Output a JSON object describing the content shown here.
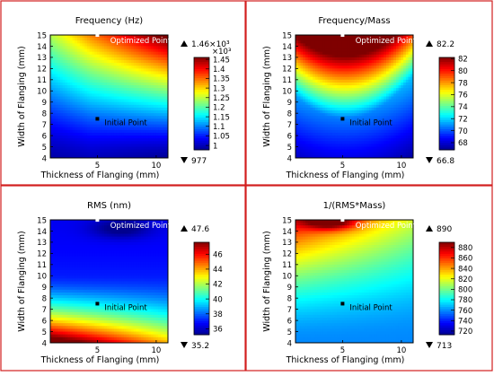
{
  "figure": {
    "border_color": "#d21f1f",
    "colormap": [
      "#00008f",
      "#0000ff",
      "#007fff",
      "#00ffff",
      "#7fff7f",
      "#ffff00",
      "#ff7f00",
      "#ff0000",
      "#7f0000"
    ]
  },
  "chart_data": [
    {
      "type": "heatmap",
      "title": "Frequency (Hz)",
      "xlabel": "Thickness of Flanging (mm)",
      "ylabel": "Width of Flanging (mm)",
      "xlim": [
        1,
        11
      ],
      "ylim": [
        4,
        15
      ],
      "x_ticks": [
        "5",
        "10"
      ],
      "y_ticks": [
        "4",
        "5",
        "6",
        "7",
        "8",
        "9",
        "10",
        "11",
        "12",
        "13",
        "14",
        "15"
      ],
      "annotations": [
        {
          "label": "Optimized Point",
          "x": 5,
          "y": 15
        },
        {
          "label": "Initial Point",
          "x": 5,
          "y": 7.5
        }
      ],
      "max_label": "1.46×10³",
      "min_label": "977",
      "colorbar_multiplier": "×10³",
      "colorbar_ticks": [
        "1.45",
        "1.4",
        "1.35",
        "1.3",
        "1.25",
        "1.2",
        "1.15",
        "1.1",
        "1.05",
        "1"
      ],
      "colorbar_range": [
        0.977,
        1.46
      ]
    },
    {
      "type": "heatmap",
      "title": "Frequency/Mass",
      "xlabel": "Thickness of Flanging (mm)",
      "ylabel": "Width of Flanging (mm)",
      "xlim": [
        1,
        11
      ],
      "ylim": [
        4,
        15
      ],
      "x_ticks": [
        "5",
        "10"
      ],
      "y_ticks": [
        "4",
        "5",
        "6",
        "7",
        "8",
        "9",
        "10",
        "11",
        "12",
        "13",
        "14",
        "15"
      ],
      "annotations": [
        {
          "label": "Optimized Point",
          "x": 5,
          "y": 15
        },
        {
          "label": "Initial Point",
          "x": 5,
          "y": 7.5
        }
      ],
      "max_label": "82.2",
      "min_label": "66.8",
      "colorbar_multiplier": "",
      "colorbar_ticks": [
        "82",
        "80",
        "78",
        "76",
        "74",
        "72",
        "70",
        "68"
      ],
      "colorbar_range": [
        66.8,
        82.2
      ]
    },
    {
      "type": "heatmap",
      "title": "RMS (nm)",
      "xlabel": "Thickness of Flanging (mm)",
      "ylabel": "Width of Flanging (mm)",
      "xlim": [
        1,
        11
      ],
      "ylim": [
        4,
        15
      ],
      "x_ticks": [
        "5",
        "10"
      ],
      "y_ticks": [
        "4",
        "5",
        "6",
        "7",
        "8",
        "9",
        "10",
        "11",
        "12",
        "13",
        "14",
        "15"
      ],
      "annotations": [
        {
          "label": "Optimized Point",
          "x": 5,
          "y": 15
        },
        {
          "label": "Initial Point",
          "x": 5,
          "y": 7.5
        }
      ],
      "max_label": "47.6",
      "min_label": "35.2",
      "colorbar_multiplier": "",
      "colorbar_ticks": [
        "46",
        "44",
        "42",
        "40",
        "38",
        "36"
      ],
      "colorbar_range": [
        35.2,
        47.6
      ]
    },
    {
      "type": "heatmap",
      "title": "1/(RMS*Mass)",
      "xlabel": "Thickness of Flanging (mm)",
      "ylabel": "Width of Flanging (mm)",
      "xlim": [
        1,
        11
      ],
      "ylim": [
        4,
        15
      ],
      "x_ticks": [
        "5",
        "10"
      ],
      "y_ticks": [
        "4",
        "5",
        "6",
        "7",
        "8",
        "9",
        "10",
        "11",
        "12",
        "13",
        "14",
        "15"
      ],
      "annotations": [
        {
          "label": "Optimized Point",
          "x": 5,
          "y": 15
        },
        {
          "label": "Initial Point",
          "x": 5,
          "y": 7.5
        }
      ],
      "max_label": "890",
      "min_label": "713",
      "colorbar_multiplier": "",
      "colorbar_ticks": [
        "880",
        "860",
        "840",
        "820",
        "800",
        "780",
        "760",
        "740",
        "720"
      ],
      "colorbar_range": [
        713,
        890
      ]
    }
  ]
}
